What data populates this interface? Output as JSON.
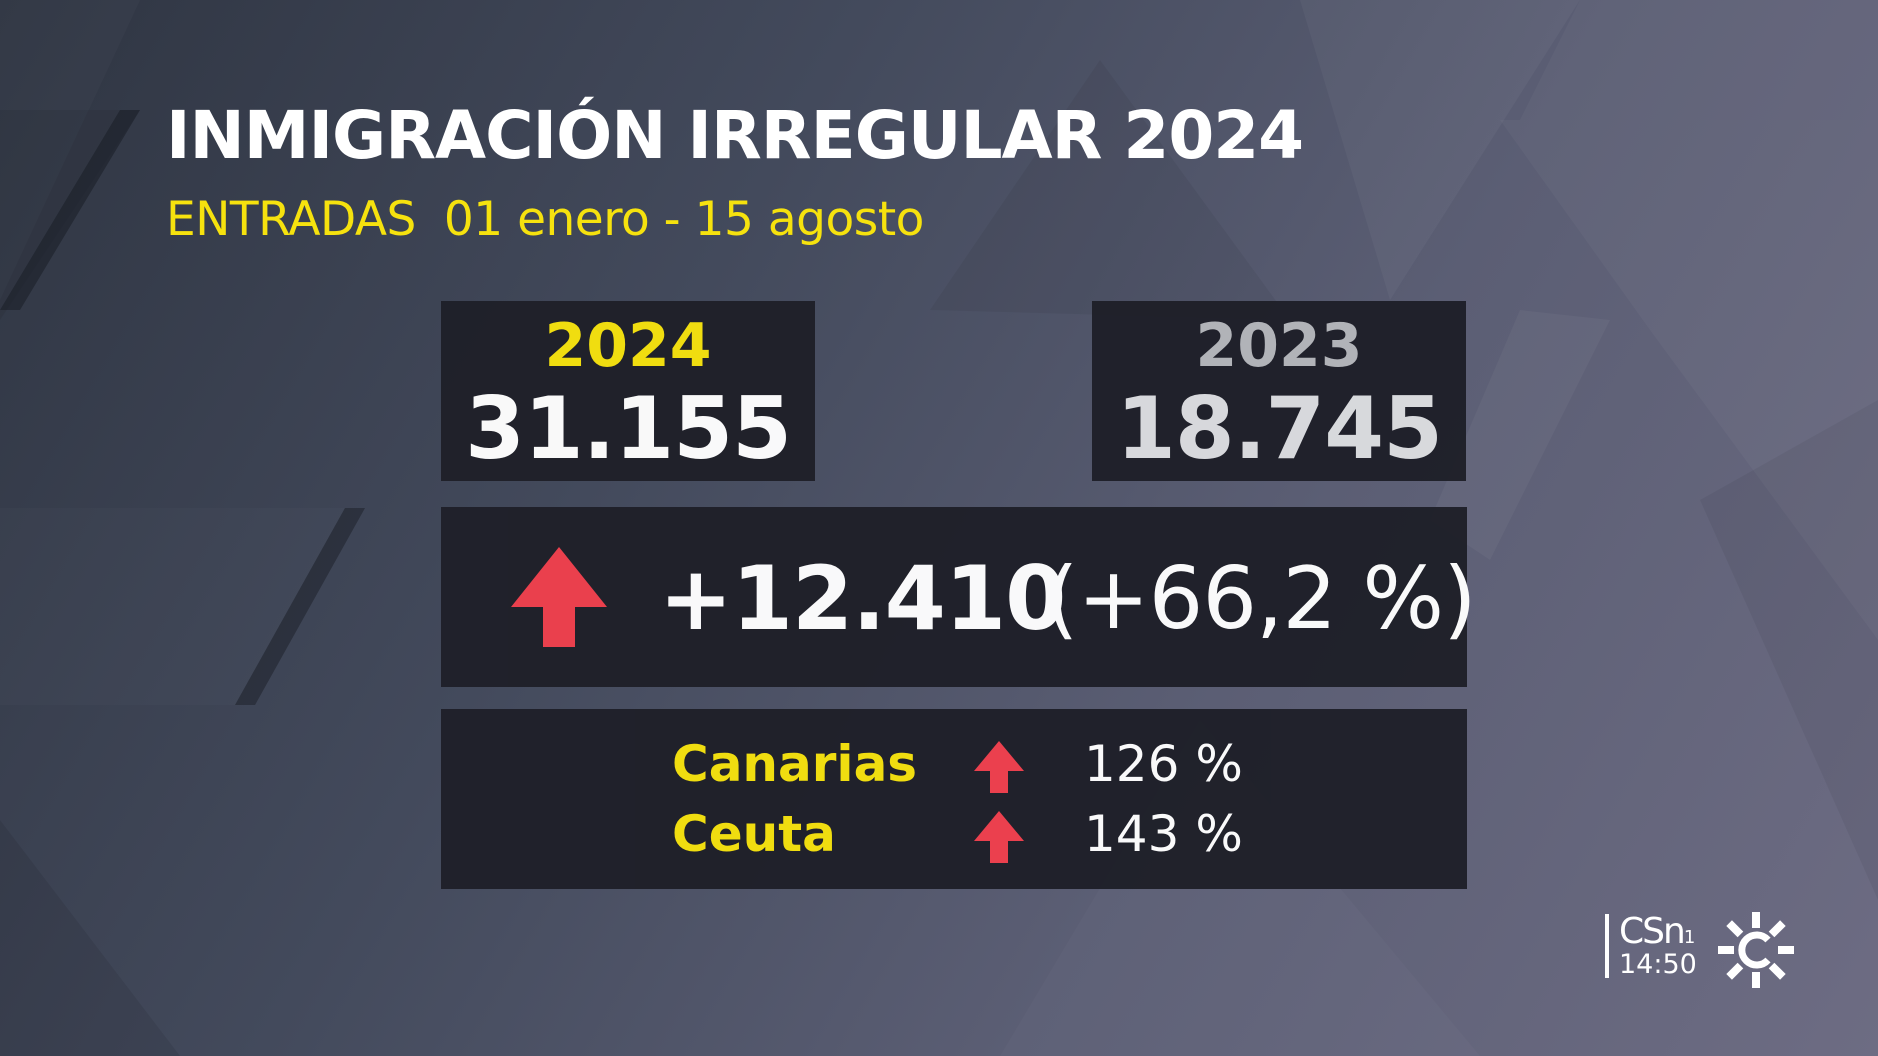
{
  "title": "INMIGRACIÓN IRREGULAR 2024",
  "subtitle": {
    "label": "ENTRADAS",
    "period": "01 enero - 15 agosto"
  },
  "current": {
    "year": "2024",
    "value": "31.155"
  },
  "previous": {
    "year": "2023",
    "value": "18.745"
  },
  "difference": {
    "value": "+12.410",
    "percent": "(+66,2 %)",
    "trend_icon": "up-arrow-icon",
    "trend_color": "#f0404d"
  },
  "regions": [
    {
      "name": "Canarias",
      "change": "126 %",
      "trend_icon": "up-arrow-icon"
    },
    {
      "name": "Ceuta",
      "change": "143 %",
      "trend_icon": "up-arrow-icon"
    }
  ],
  "broadcast": {
    "channel": "CSn",
    "channel_number": "1",
    "time": "14:50",
    "logo_icon": "canal-sur-sun-icon"
  },
  "colors": {
    "accent_yellow": "#f6e20e",
    "panel": "#1f2029",
    "arrow_red": "#f0404d"
  }
}
